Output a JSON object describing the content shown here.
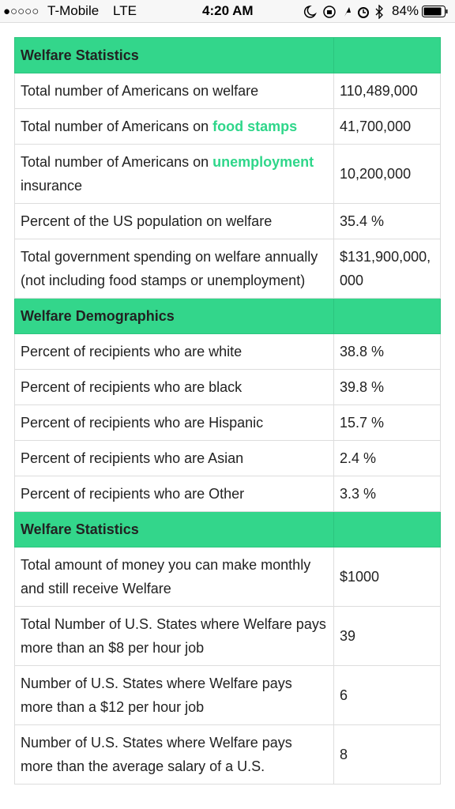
{
  "status_bar": {
    "signal": "●○○○○",
    "carrier": "T-Mobile",
    "network": "LTE",
    "time": "4:20 AM",
    "battery": "84%"
  },
  "table": {
    "sections": [
      {
        "title": "Welfare Statistics",
        "rows": [
          {
            "label": [
              "Total number of Americans on welfare"
            ],
            "value": "110,489,000"
          },
          {
            "label": [
              "Total number of Americans on ",
              {
                "text": "food stamps",
                "link": true
              }
            ],
            "value": "41,700,000"
          },
          {
            "label": [
              "Total number of Americans on ",
              {
                "text": "unemployment",
                "link": true
              },
              " insurance"
            ],
            "value": "10,200,000"
          },
          {
            "label": [
              "Percent of the US population on welfare"
            ],
            "value": "35.4 %"
          },
          {
            "label": [
              "Total government spending on welfare annually (not including food stamps or unemployment)"
            ],
            "value": "$131,900,000,000"
          }
        ]
      },
      {
        "title": "Welfare Demographics",
        "rows": [
          {
            "label": [
              "Percent of recipients who are white"
            ],
            "value": "38.8 %"
          },
          {
            "label": [
              "Percent of recipients who are black"
            ],
            "value": "39.8 %"
          },
          {
            "label": [
              "Percent of recipients who are Hispanic"
            ],
            "value": "15.7 %"
          },
          {
            "label": [
              "Percent of recipients who are Asian"
            ],
            "value": "2.4 %"
          },
          {
            "label": [
              "Percent of recipients who are Other"
            ],
            "value": "3.3 %"
          }
        ]
      },
      {
        "title": "Welfare Statistics",
        "rows": [
          {
            "label": [
              "Total amount of money you can make monthly and still receive Welfare"
            ],
            "value": "$1000"
          },
          {
            "label": [
              "Total Number of U.S. States where Welfare pays more than an $8 per hour job"
            ],
            "value": "39"
          },
          {
            "label": [
              "Number of U.S. States where Welfare pays more than a $12 per hour job"
            ],
            "value": "6"
          },
          {
            "label": [
              "Number of U.S. States where Welfare pays more than the average salary of a U.S."
            ],
            "value": "8"
          }
        ]
      }
    ]
  }
}
